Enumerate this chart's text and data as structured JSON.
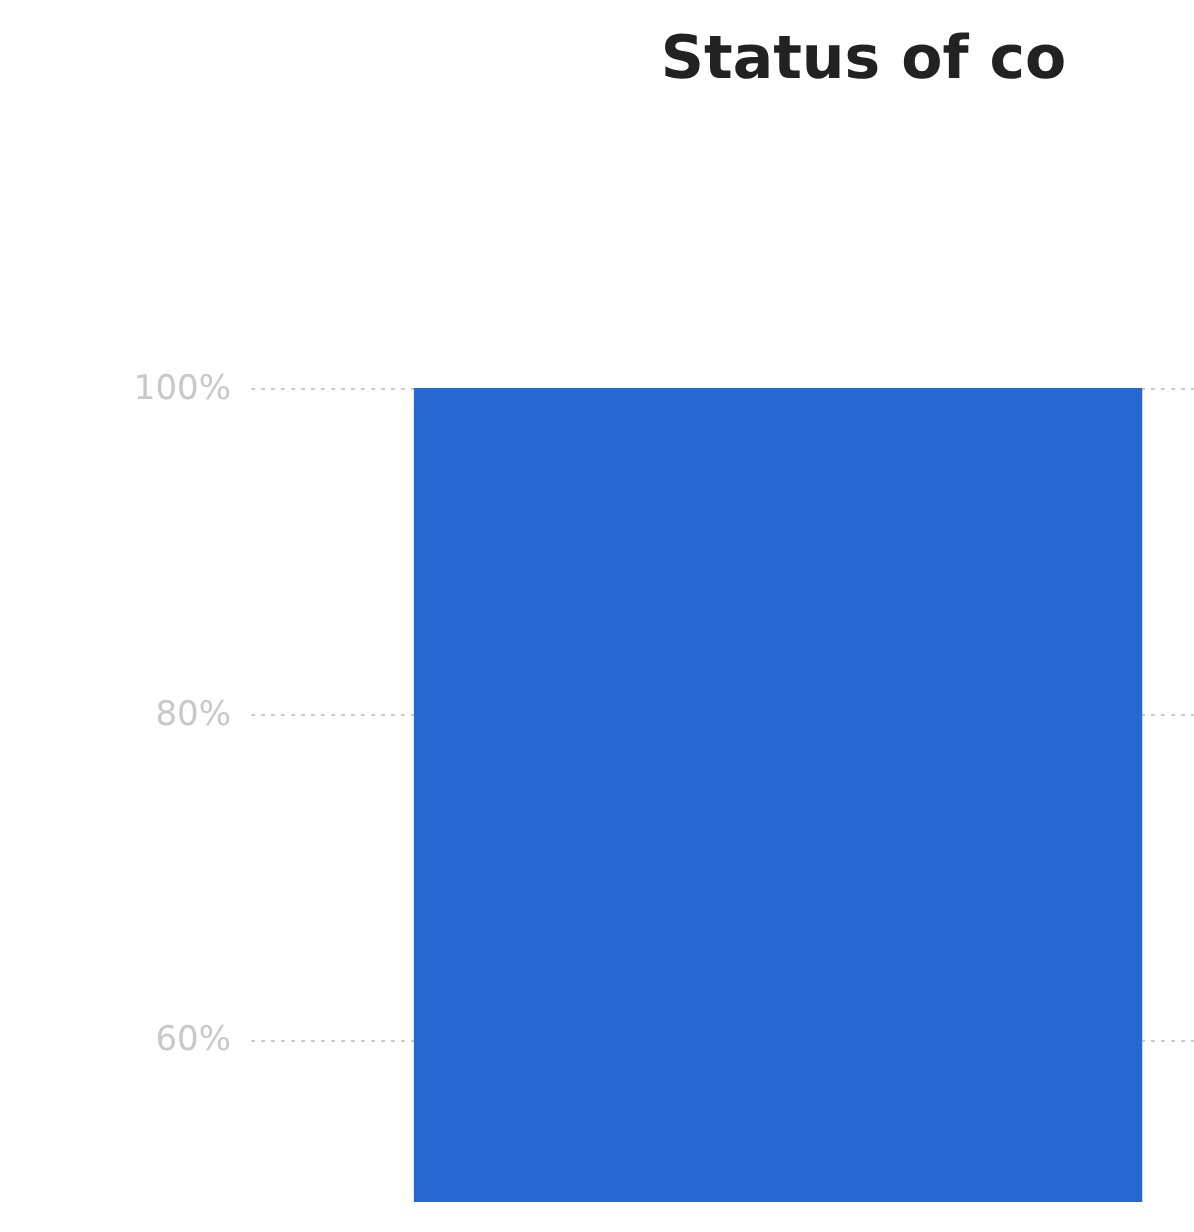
{
  "chart_data": {
    "type": "bar",
    "title": "Status of co",
    "categories": [
      null
    ],
    "values": [
      100
    ],
    "color": "#2767d0",
    "ylim": [
      50,
      100
    ],
    "yticks": [
      {
        "value": 60,
        "label": "60%"
      },
      {
        "value": 80,
        "label": "80%"
      },
      {
        "value": 100,
        "label": "100%"
      }
    ],
    "grid": "y",
    "tick_labels": "y"
  }
}
